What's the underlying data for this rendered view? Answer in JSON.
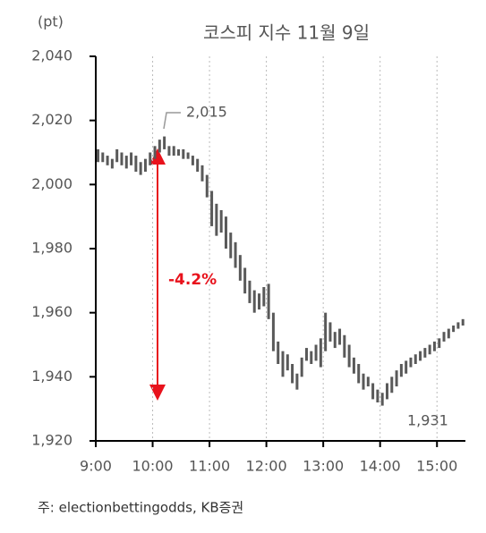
{
  "chart_data": {
    "type": "range-bar",
    "title": "코스피 지수 11월 9일",
    "y_unit": "(pt)",
    "source": "주: electionbettingodds, KB증권",
    "peak_label": "2,015",
    "low_label": "1,931",
    "change_label": "-4.2%",
    "color": "#595959",
    "grid": "x",
    "xlim": [
      540,
      930
    ],
    "xticks": [
      {
        "value": 540,
        "label": "9:00"
      },
      {
        "value": 600,
        "label": "10:00"
      },
      {
        "value": 660,
        "label": "11:00"
      },
      {
        "value": 720,
        "label": "12:00"
      },
      {
        "value": 780,
        "label": "13:00"
      },
      {
        "value": 840,
        "label": "14:00"
      },
      {
        "value": 900,
        "label": "15:00"
      }
    ],
    "ylim": [
      1920,
      2040
    ],
    "yticks": [
      {
        "value": 1920,
        "label": "1,920"
      },
      {
        "value": 1940,
        "label": "1,940"
      },
      {
        "value": 1960,
        "label": "1,960"
      },
      {
        "value": 1980,
        "label": "1,980"
      },
      {
        "value": 2000,
        "label": "2,000"
      },
      {
        "value": 2020,
        "label": "2,020"
      },
      {
        "value": 2040,
        "label": "2,040"
      }
    ],
    "x": [
      540,
      545,
      550,
      555,
      560,
      565,
      570,
      575,
      580,
      585,
      590,
      595,
      600,
      605,
      610,
      615,
      620,
      625,
      630,
      635,
      640,
      645,
      650,
      655,
      660,
      665,
      670,
      675,
      680,
      685,
      690,
      695,
      700,
      705,
      710,
      715,
      720,
      725,
      730,
      735,
      740,
      745,
      750,
      755,
      760,
      765,
      770,
      775,
      780,
      785,
      790,
      795,
      800,
      805,
      810,
      815,
      820,
      825,
      830,
      835,
      840,
      845,
      850,
      855,
      860,
      865,
      870,
      875,
      880,
      885,
      890,
      895,
      900,
      905,
      910,
      915,
      920,
      925
    ],
    "low": [
      2007,
      2007,
      2006,
      2005,
      2007,
      2006,
      2005,
      2006,
      2004,
      2003,
      2004,
      2006,
      2008,
      2010,
      2011,
      2009,
      2009,
      2009,
      2008,
      2008,
      2006,
      2004,
      2001,
      1996,
      1987,
      1984,
      1985,
      1980,
      1977,
      1974,
      1970,
      1966,
      1963,
      1960,
      1961,
      1962,
      1958,
      1948,
      1944,
      1940,
      1942,
      1938,
      1936,
      1940,
      1945,
      1944,
      1945,
      1943,
      1948,
      1951,
      1949,
      1950,
      1946,
      1943,
      1941,
      1938,
      1936,
      1937,
      1933,
      1932,
      1931,
      1933,
      1935,
      1937,
      1940,
      1941,
      1943,
      1944,
      1945,
      1946,
      1947,
      1948,
      1949,
      1951,
      1952,
      1954,
      1955,
      1956
    ],
    "high": [
      2011,
      2010,
      2009,
      2008,
      2011,
      2010,
      2009,
      2010,
      2009,
      2007,
      2008,
      2010,
      2012,
      2014,
      2015,
      2012,
      2012,
      2011,
      2011,
      2010,
      2009,
      2008,
      2006,
      2003,
      1998,
      1994,
      1992,
      1990,
      1985,
      1982,
      1978,
      1974,
      1970,
      1967,
      1966,
      1968,
      1969,
      1960,
      1951,
      1948,
      1947,
      1944,
      1941,
      1946,
      1949,
      1948,
      1950,
      1952,
      1960,
      1957,
      1954,
      1955,
      1953,
      1950,
      1946,
      1944,
      1941,
      1940,
      1938,
      1936,
      1935,
      1938,
      1940,
      1942,
      1944,
      1945,
      1946,
      1947,
      1948,
      1949,
      1950,
      1951,
      1952,
      1954,
      1955,
      1956,
      1957,
      1958
    ]
  }
}
